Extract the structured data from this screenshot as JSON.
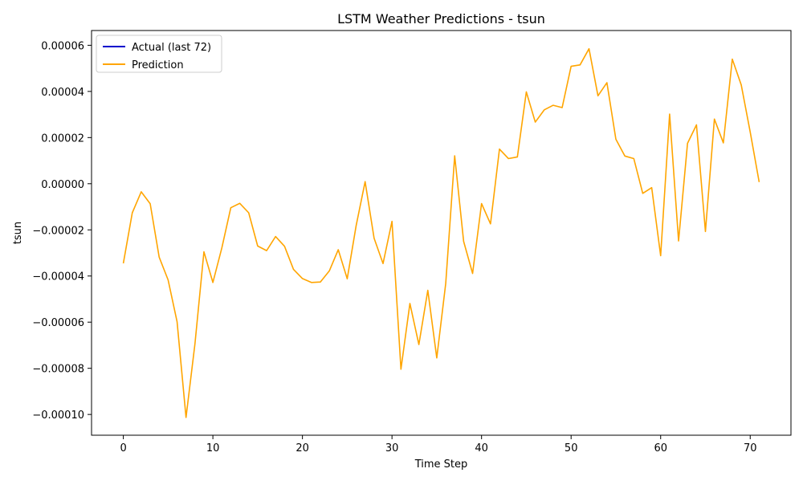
{
  "chart_data": {
    "type": "line",
    "title": "LSTM Weather Predictions - tsun",
    "xlabel": "Time Step",
    "ylabel": "tsun",
    "xlim": [
      -3.55,
      74.55
    ],
    "ylim": [
      -0.000109,
      6.64e-05
    ],
    "x_ticks": [
      0,
      10,
      20,
      30,
      40,
      50,
      60,
      70
    ],
    "x_tick_labels": [
      "0",
      "10",
      "20",
      "30",
      "40",
      "50",
      "60",
      "70"
    ],
    "y_ticks": [
      -0.0001,
      -8e-05,
      -6e-05,
      -4e-05,
      -2e-05,
      0,
      2e-05,
      4e-05,
      6e-05
    ],
    "y_tick_labels": [
      "−0.00010",
      "−0.00008",
      "−0.00006",
      "−0.00004",
      "−0.00002",
      "0.00000",
      "0.00002",
      "0.00004",
      "0.00006"
    ],
    "grid": false,
    "legend_position": "top-left",
    "series": [
      {
        "name": "Actual (last 72)",
        "color": "#0000cc",
        "values": []
      },
      {
        "name": "Prediction",
        "color": "#ffa500",
        "x": [
          0,
          1,
          2,
          3,
          4,
          5,
          6,
          7,
          8,
          9,
          10,
          11,
          12,
          13,
          14,
          15,
          16,
          17,
          18,
          19,
          20,
          21,
          22,
          23,
          24,
          25,
          26,
          27,
          28,
          29,
          30,
          31,
          32,
          33,
          34,
          35,
          36,
          37,
          38,
          39,
          40,
          41,
          42,
          43,
          44,
          45,
          46,
          47,
          48,
          49,
          50,
          51,
          52,
          53,
          54,
          55,
          56,
          57,
          58,
          59,
          60,
          61,
          62,
          63,
          64,
          65,
          66,
          67,
          68,
          69,
          70,
          71
        ],
        "values": [
          -3.45e-05,
          -1.26e-05,
          -3.5e-06,
          -8.7e-06,
          -3.18e-05,
          -4.17e-05,
          -5.98e-05,
          -0.0001013,
          -6.93e-05,
          -2.95e-05,
          -4.28e-05,
          -2.78e-05,
          -1.04e-05,
          -8.5e-06,
          -1.26e-05,
          -2.7e-05,
          -2.9e-05,
          -2.29e-05,
          -2.71e-05,
          -3.71e-05,
          -4.11e-05,
          -4.28e-05,
          -4.26e-05,
          -3.78e-05,
          -2.86e-05,
          -4.12e-05,
          -1.81e-05,
          9e-07,
          -2.36e-05,
          -3.46e-05,
          -1.63e-05,
          -8.04e-05,
          -5.19e-05,
          -6.97e-05,
          -4.62e-05,
          -7.55e-05,
          -4.32e-05,
          1.21e-05,
          -2.5e-05,
          -3.89e-05,
          -8.6e-06,
          -1.74e-05,
          1.5e-05,
          1.09e-05,
          1.16e-05,
          3.98e-05,
          2.67e-05,
          3.2e-05,
          3.4e-05,
          3.3e-05,
          5.09e-05,
          5.15e-05,
          5.85e-05,
          3.81e-05,
          4.38e-05,
          1.93e-05,
          1.2e-05,
          1.09e-05,
          -4.2e-06,
          -1.7e-06,
          -3.12e-05,
          3.02e-05,
          -2.48e-05,
          1.75e-05,
          2.55e-05,
          -2.07e-05,
          2.8e-05,
          1.77e-05,
          5.4e-05,
          4.28e-05,
          2.24e-05,
          7e-07
        ]
      }
    ]
  }
}
